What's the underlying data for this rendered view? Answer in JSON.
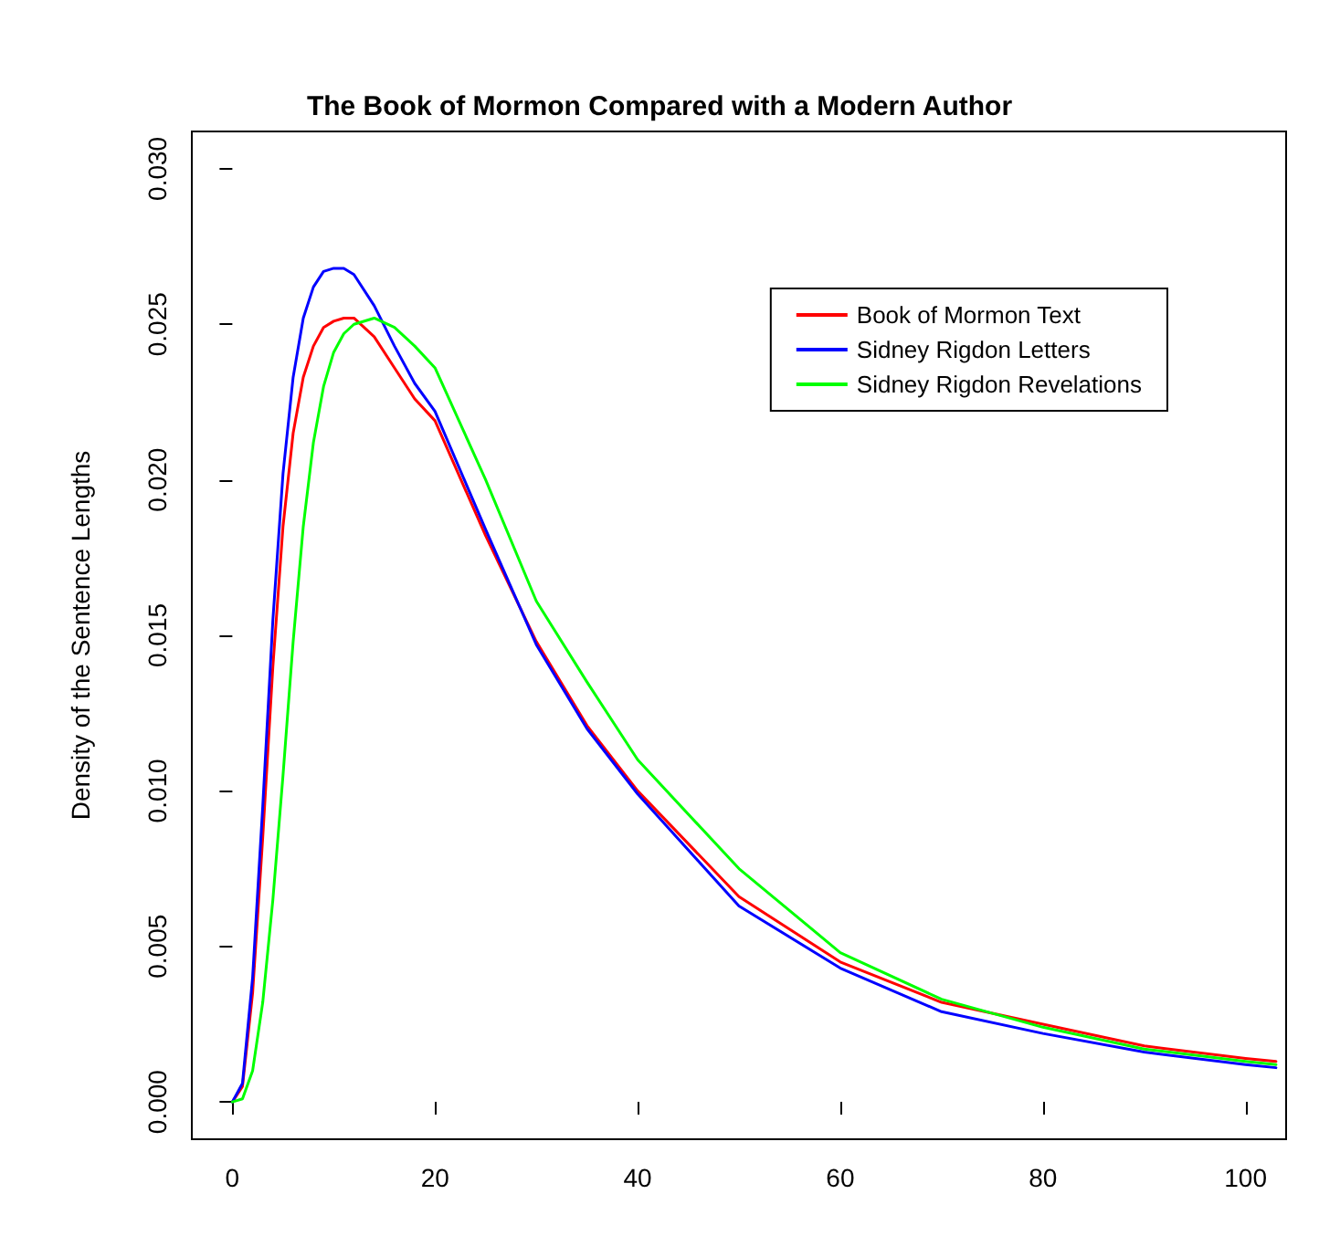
{
  "chart_data": {
    "type": "line",
    "title": "The Book of Mormon Compared with a Modern Author",
    "ylabel": "Density of the Sentence Lengths",
    "x": [
      0,
      1,
      2,
      3,
      4,
      5,
      6,
      7,
      8,
      9,
      10,
      11,
      12,
      14,
      16,
      18,
      20,
      25,
      30,
      35,
      40,
      50,
      60,
      70,
      80,
      90,
      100,
      103
    ],
    "xlim": [
      -4,
      104
    ],
    "xticks": [
      0,
      20,
      40,
      60,
      80,
      100
    ],
    "ylim": [
      -0.0012,
      0.0312
    ],
    "yticks": [
      {
        "value": 0,
        "label": "0.000"
      },
      {
        "value": 0.005,
        "label": "0.005"
      },
      {
        "value": 0.01,
        "label": "0.010"
      },
      {
        "value": 0.015,
        "label": "0.015"
      },
      {
        "value": 0.02,
        "label": "0.020"
      },
      {
        "value": 0.025,
        "label": "0.025"
      },
      {
        "value": 0.03,
        "label": "0.030"
      }
    ],
    "series": [
      {
        "name": "Book of Mormon Text",
        "color": "#ff0000",
        "values": [
          0,
          0.0005,
          0.0035,
          0.0085,
          0.014,
          0.0185,
          0.0215,
          0.0233,
          0.0243,
          0.0249,
          0.0251,
          0.0252,
          0.0252,
          0.0246,
          0.0236,
          0.0226,
          0.0219,
          0.0182,
          0.0148,
          0.0121,
          0.01,
          0.0066,
          0.0045,
          0.0032,
          0.0025,
          0.0018,
          0.0014,
          0.0013
        ]
      },
      {
        "name": "Sidney Rigdon Letters",
        "color": "#0000ff",
        "values": [
          0,
          0.0006,
          0.004,
          0.0095,
          0.0155,
          0.0202,
          0.0233,
          0.0252,
          0.0262,
          0.0267,
          0.0268,
          0.0268,
          0.0266,
          0.0256,
          0.0243,
          0.0231,
          0.0222,
          0.0184,
          0.0147,
          0.012,
          0.0099,
          0.0063,
          0.0043,
          0.0029,
          0.0022,
          0.0016,
          0.0012,
          0.0011
        ]
      },
      {
        "name": "Sidney Rigdon Revelations",
        "color": "#00ff00",
        "values": [
          0,
          0.0001,
          0.001,
          0.0032,
          0.0065,
          0.0105,
          0.0148,
          0.0185,
          0.0212,
          0.023,
          0.0241,
          0.0247,
          0.025,
          0.0252,
          0.0249,
          0.0243,
          0.0236,
          0.02,
          0.0161,
          0.0135,
          0.011,
          0.0075,
          0.0048,
          0.0033,
          0.0024,
          0.0017,
          0.0013,
          0.0012
        ]
      }
    ],
    "legend": "top right",
    "grid": false,
    "line_style": "solid"
  }
}
